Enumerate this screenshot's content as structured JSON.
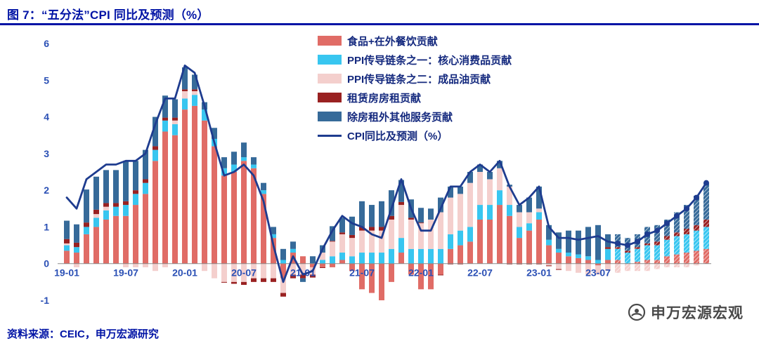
{
  "title": "图 7：“五分法”CPI 同比及预测（%）",
  "source_note": "资料来源：CEIC，申万宏源研究",
  "watermark": "申万宏源宏观",
  "colors": {
    "title_navy": "#0013A5",
    "axis_label_blue": "#2B50B5",
    "legend_text": "#14297E",
    "zero_axis": "#8A8A8A"
  },
  "chart_data": {
    "type": "bar",
    "stacked": true,
    "overlay": "line",
    "title": "“五分法”CPI 同比及预测（%）",
    "xlabel": "",
    "ylabel": "",
    "ylim": [
      -1,
      6
    ],
    "yticks": [
      6,
      5,
      4,
      3,
      2,
      1,
      0,
      -1
    ],
    "grid": false,
    "legend_position": "top-center",
    "x": [
      "19-01",
      "19-02",
      "19-03",
      "19-04",
      "19-05",
      "19-06",
      "19-07",
      "19-08",
      "19-09",
      "19-10",
      "19-11",
      "19-12",
      "20-01",
      "20-02",
      "20-03",
      "20-04",
      "20-05",
      "20-06",
      "20-07",
      "20-08",
      "20-09",
      "20-10",
      "20-11",
      "20-12",
      "21-01",
      "21-02",
      "21-03",
      "21-04",
      "21-05",
      "21-06",
      "21-07",
      "21-08",
      "21-09",
      "21-10",
      "21-11",
      "21-12",
      "22-01",
      "22-02",
      "22-03",
      "22-04",
      "22-05",
      "22-06",
      "22-07",
      "22-08",
      "22-09",
      "22-10",
      "22-11",
      "22-12",
      "23-01",
      "23-02",
      "23-03",
      "23-04",
      "23-05",
      "23-06",
      "23-07",
      "23-08",
      "23-09",
      "23-10",
      "23-11",
      "23-12",
      "24-01",
      "24-02",
      "24-03",
      "24-04",
      "24-05",
      "24-06"
    ],
    "x_tick_indices": [
      0,
      6,
      12,
      18,
      24,
      30,
      36,
      42,
      48,
      54
    ],
    "forecast_from_index": 56,
    "series": [
      {
        "name": "食品+在外餐饮贡献",
        "color": "#E06C66",
        "values": [
          0.35,
          0.3,
          0.8,
          1.0,
          1.2,
          1.3,
          1.3,
          1.6,
          1.9,
          2.8,
          3.6,
          3.5,
          4.2,
          4.3,
          3.9,
          3.2,
          2.4,
          2.5,
          2.8,
          2.6,
          1.9,
          0.7,
          -0.4,
          0.3,
          0.2,
          -0.1,
          -0.1,
          -0.1,
          0.1,
          -0.2,
          -0.7,
          -0.8,
          -1.0,
          -0.5,
          0.3,
          -0.3,
          -0.7,
          -0.7,
          -0.3,
          0.4,
          0.5,
          0.6,
          1.2,
          1.2,
          1.6,
          1.3,
          0.7,
          0.9,
          1.2,
          0.5,
          0.3,
          0.2,
          0.15,
          0.1,
          -0.05,
          0.1,
          0.1,
          0.0,
          0.05,
          0.1,
          0.1,
          0.2,
          0.25,
          0.3,
          0.35,
          0.4
        ]
      },
      {
        "name": "PPI传导链条之一：核心消费品贡献",
        "color": "#38C6F0",
        "values": [
          0.15,
          0.15,
          0.2,
          0.25,
          0.25,
          0.25,
          0.3,
          0.3,
          0.3,
          0.3,
          0.3,
          0.3,
          0.3,
          0.3,
          0.3,
          0.2,
          0.2,
          0.2,
          0.1,
          0.1,
          0.1,
          0.1,
          0.1,
          0.1,
          0.0,
          0.0,
          0.1,
          0.2,
          0.2,
          0.2,
          0.3,
          0.3,
          0.3,
          0.4,
          0.4,
          0.4,
          0.4,
          0.4,
          0.4,
          0.4,
          0.4,
          0.4,
          0.4,
          0.4,
          0.4,
          0.3,
          0.3,
          0.2,
          0.2,
          0.15,
          0.1,
          0.1,
          0.1,
          0.1,
          0.1,
          0.3,
          0.3,
          0.3,
          0.35,
          0.4,
          0.4,
          0.45,
          0.5,
          0.5,
          0.55,
          0.6
        ]
      },
      {
        "name": "PPI传导链条之二：成品油贡献",
        "color": "#F4CFCD",
        "values": [
          0.05,
          -0.1,
          0.0,
          0.1,
          0.1,
          0.0,
          -0.1,
          -0.1,
          -0.1,
          -0.2,
          -0.1,
          0.1,
          0.2,
          0.1,
          -0.2,
          -0.4,
          -0.5,
          -0.5,
          -0.5,
          -0.4,
          -0.4,
          -0.4,
          -0.4,
          -0.3,
          -0.3,
          -0.2,
          0.2,
          0.4,
          0.5,
          0.5,
          0.6,
          0.6,
          0.6,
          0.8,
          0.9,
          0.8,
          0.7,
          0.8,
          1.0,
          1.0,
          1.0,
          1.2,
          0.9,
          0.7,
          0.6,
          0.5,
          0.4,
          0.3,
          0.1,
          -0.05,
          -0.15,
          -0.2,
          -0.25,
          -0.3,
          -0.25,
          -0.2,
          -0.25,
          -0.2,
          -0.2,
          -0.2,
          -0.15,
          -0.1,
          -0.1,
          -0.1,
          -0.05,
          0.0
        ]
      },
      {
        "name": "租赁房房租贡献",
        "color": "#992121",
        "values": [
          0.12,
          0.12,
          0.12,
          0.12,
          0.1,
          0.1,
          0.1,
          0.1,
          0.1,
          0.1,
          0.08,
          0.08,
          0.05,
          0.05,
          0.0,
          0.0,
          -0.02,
          -0.05,
          -0.08,
          -0.1,
          -0.1,
          -0.1,
          -0.1,
          -0.1,
          -0.1,
          -0.08,
          -0.02,
          0.02,
          0.05,
          0.08,
          0.1,
          0.1,
          0.1,
          0.1,
          0.08,
          0.05,
          0.02,
          0.0,
          -0.02,
          -0.02,
          -0.02,
          0.0,
          0.0,
          0.0,
          0.0,
          -0.02,
          -0.02,
          -0.02,
          -0.02,
          -0.02,
          -0.02,
          0.0,
          0.0,
          0.0,
          0.0,
          0.05,
          0.05,
          0.05,
          0.05,
          0.05,
          0.1,
          0.1,
          0.1,
          0.15,
          0.15,
          0.2
        ]
      },
      {
        "name": "除房租外其他服务贡献",
        "color": "#366A99",
        "values": [
          0.5,
          0.5,
          0.9,
          0.9,
          0.9,
          0.9,
          1.1,
          0.8,
          0.8,
          0.8,
          0.6,
          0.5,
          0.6,
          0.4,
          0.2,
          0.3,
          0.3,
          0.35,
          0.4,
          0.2,
          0.2,
          0.2,
          0.3,
          0.2,
          -0.1,
          0.2,
          0.2,
          0.4,
          0.4,
          0.5,
          0.7,
          0.6,
          0.7,
          0.7,
          0.6,
          0.5,
          0.4,
          0.3,
          0.4,
          0.3,
          0.2,
          0.3,
          0.2,
          0.2,
          0.2,
          0.05,
          0.2,
          0.4,
          0.6,
          0.4,
          0.45,
          0.6,
          0.65,
          0.8,
          0.95,
          0.35,
          0.35,
          0.35,
          0.35,
          0.45,
          0.45,
          0.45,
          0.55,
          0.65,
          0.8,
          1.0
        ]
      }
    ],
    "line": {
      "name": "CPI同比及预测（%）",
      "color": "#1E3C8F",
      "marker_from_index": 56,
      "values": [
        1.8,
        1.5,
        2.3,
        2.5,
        2.7,
        2.7,
        2.8,
        2.8,
        3.0,
        3.8,
        4.5,
        4.5,
        5.4,
        5.2,
        4.3,
        3.3,
        2.4,
        2.5,
        2.7,
        2.4,
        1.7,
        0.5,
        -0.5,
        0.2,
        -0.3,
        -0.2,
        0.4,
        0.9,
        1.3,
        1.1,
        1.0,
        0.8,
        0.7,
        1.5,
        2.3,
        1.5,
        0.9,
        0.9,
        1.5,
        2.1,
        2.1,
        2.5,
        2.7,
        2.5,
        2.8,
        2.1,
        1.6,
        1.8,
        2.1,
        1.0,
        0.7,
        0.7,
        0.65,
        0.7,
        0.75,
        0.6,
        0.55,
        0.5,
        0.6,
        0.8,
        0.9,
        1.1,
        1.3,
        1.5,
        1.8,
        2.2
      ]
    }
  }
}
